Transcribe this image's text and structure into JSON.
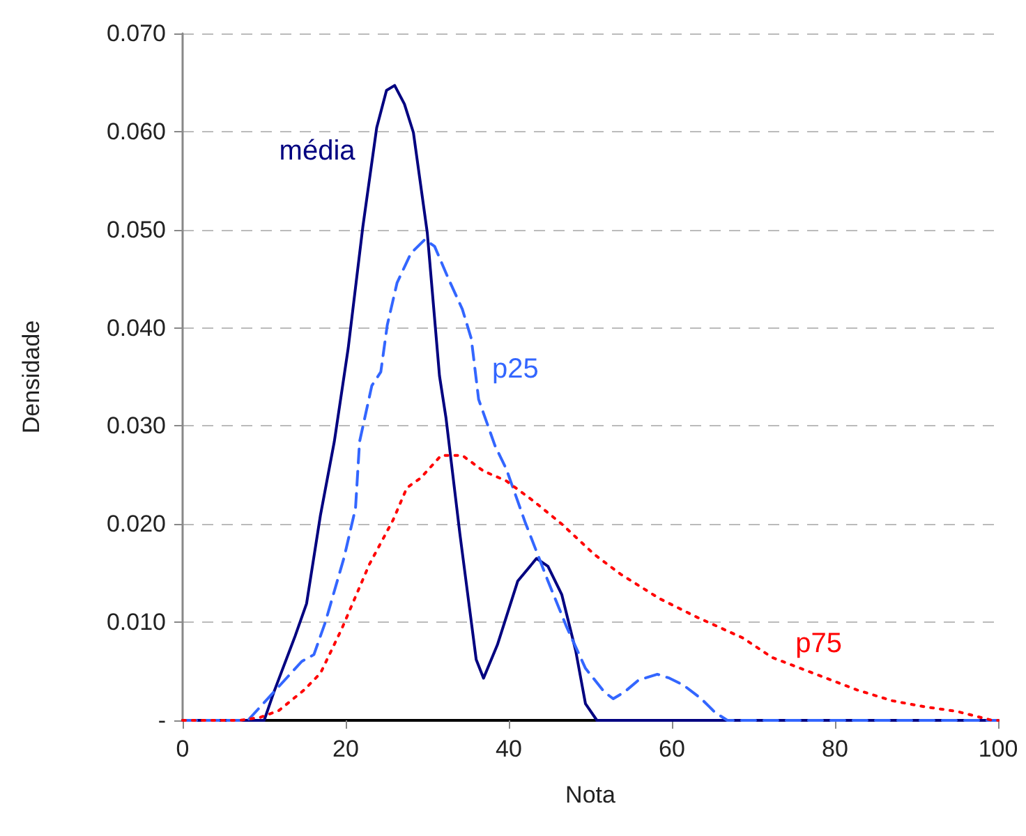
{
  "chart_data": {
    "type": "line",
    "xlabel": "Nota",
    "ylabel": "Densidade",
    "xlim": [
      0,
      100
    ],
    "xticks": [
      0,
      20,
      40,
      60,
      80,
      100
    ],
    "ylim": [
      0,
      0.07
    ],
    "yticks": [
      {
        "value": 0,
        "label": "-"
      },
      {
        "value": 0.01,
        "label": "0.010"
      },
      {
        "value": 0.02,
        "label": "0.020"
      },
      {
        "value": 0.03,
        "label": "0.030"
      },
      {
        "value": 0.04,
        "label": "0.040"
      },
      {
        "value": 0.05,
        "label": "0.050"
      },
      {
        "value": 0.06,
        "label": "0.060"
      },
      {
        "value": 0.07,
        "label": "0.070"
      }
    ],
    "grid": "y",
    "legend": false,
    "marker": "none",
    "series": [
      {
        "name": "média",
        "color": "#000080",
        "line_style": "solid",
        "x": [
          0,
          5,
          9,
          10,
          11.2,
          13.8,
          15.2,
          16.9,
          18.6,
          20.3,
          22.1,
          23.8,
          25,
          26,
          27.2,
          28.3,
          30,
          31.5,
          32.3,
          34,
          36,
          36.9,
          38.6,
          41.1,
          43.4,
          44.8,
          46.5,
          48.2,
          49.4,
          50.8,
          60,
          70,
          80,
          90,
          100
        ],
        "values": [
          0,
          0,
          0,
          0,
          0.0029,
          0.0086,
          0.0119,
          0.0209,
          0.0284,
          0.0379,
          0.0503,
          0.0604,
          0.0642,
          0.0647,
          0.0628,
          0.0599,
          0.0497,
          0.0351,
          0.0308,
          0.019,
          0.0062,
          0.0043,
          0.0077,
          0.0142,
          0.0165,
          0.0157,
          0.0128,
          0.0071,
          0.0017,
          0,
          0,
          0,
          0,
          0,
          0
        ]
      },
      {
        "name": "p25",
        "color": "#3366ff",
        "line_style": "dashed",
        "x": [
          0,
          5,
          8,
          11.2,
          14.6,
          16.1,
          17.5,
          19.8,
          21.2,
          21.7,
          23.2,
          24.3,
          25.1,
          26.3,
          28,
          29.7,
          30.9,
          32.6,
          34.3,
          35.4,
          36.3,
          38.3,
          39.7,
          42,
          44.8,
          47.1,
          49.4,
          51.7,
          52.8,
          54.2,
          55.9,
          58.2,
          59.7,
          61.4,
          63.6,
          65.3,
          66.8,
          75,
          85,
          100
        ],
        "values": [
          0,
          0,
          0,
          0.0029,
          0.006,
          0.0067,
          0.01,
          0.0166,
          0.0216,
          0.0284,
          0.0341,
          0.0355,
          0.0403,
          0.0446,
          0.0476,
          0.049,
          0.0483,
          0.045,
          0.0419,
          0.0389,
          0.0327,
          0.028,
          0.0256,
          0.0202,
          0.0142,
          0.0095,
          0.0053,
          0.0029,
          0.0022,
          0.0029,
          0.0041,
          0.0047,
          0.0043,
          0.0036,
          0.0022,
          0.0008,
          0,
          0,
          0,
          0
        ]
      },
      {
        "name": "p75",
        "color": "#ff0000",
        "line_style": "dotted",
        "x": [
          0,
          5,
          7,
          9.5,
          11.8,
          14.9,
          16.9,
          19.5,
          21.2,
          22.9,
          24.9,
          25.8,
          27.5,
          29.2,
          31.7,
          34.3,
          36.9,
          39.7,
          43.1,
          46.5,
          50.5,
          53.7,
          58.5,
          63.1,
          68.7,
          72.3,
          82.7,
          87,
          90.9,
          95,
          99.3,
          100
        ],
        "values": [
          0,
          0,
          0,
          0.0003,
          0.001,
          0.0031,
          0.0048,
          0.0093,
          0.0126,
          0.0159,
          0.019,
          0.0204,
          0.0237,
          0.0247,
          0.027,
          0.027,
          0.0254,
          0.0244,
          0.0223,
          0.02,
          0.0169,
          0.0149,
          0.0124,
          0.0105,
          0.0084,
          0.0064,
          0.0031,
          0.002,
          0.0014,
          0.0009,
          0,
          0
        ]
      }
    ]
  }
}
